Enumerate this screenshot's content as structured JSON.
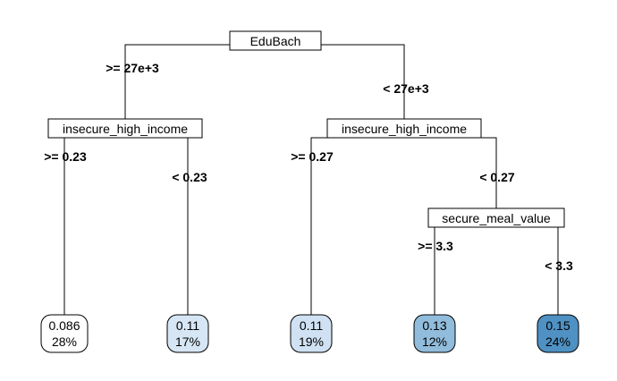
{
  "nodes": {
    "root": "EduBach",
    "left": "insecure_high_income",
    "right": "insecure_high_income",
    "right_right": "secure_meal_value"
  },
  "splits": {
    "root_left": ">= 27e+3",
    "root_right": "< 27e+3",
    "left_left": ">= 0.23",
    "left_right": "< 0.23",
    "right_left": ">= 0.27",
    "right_right": "< 0.27",
    "rr_left": ">= 3.3",
    "rr_right": "< 3.3"
  },
  "leaves": [
    {
      "value": "0.086",
      "percent": "28%",
      "color": "#ffffff"
    },
    {
      "value": "0.11",
      "percent": "17%",
      "color": "#d6e6f4"
    },
    {
      "value": "0.11",
      "percent": "19%",
      "color": "#cfe1f2"
    },
    {
      "value": "0.13",
      "percent": "12%",
      "color": "#91bcdb"
    },
    {
      "value": "0.15",
      "percent": "24%",
      "color": "#4f91c3"
    }
  ]
}
